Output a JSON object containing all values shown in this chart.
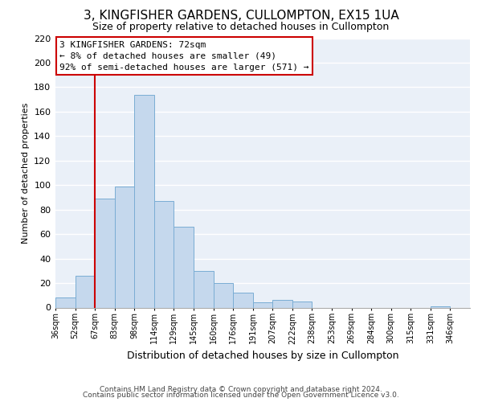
{
  "title": "3, KINGFISHER GARDENS, CULLOMPTON, EX15 1UA",
  "subtitle": "Size of property relative to detached houses in Cullompton",
  "xlabel": "Distribution of detached houses by size in Cullompton",
  "ylabel": "Number of detached properties",
  "bar_color": "#c5d8ed",
  "bar_edge_color": "#7aadd4",
  "background_color": "#eaf0f8",
  "grid_color": "white",
  "bin_labels": [
    "36sqm",
    "52sqm",
    "67sqm",
    "83sqm",
    "98sqm",
    "114sqm",
    "129sqm",
    "145sqm",
    "160sqm",
    "176sqm",
    "191sqm",
    "207sqm",
    "222sqm",
    "238sqm",
    "253sqm",
    "269sqm",
    "284sqm",
    "300sqm",
    "315sqm",
    "331sqm",
    "346sqm"
  ],
  "bar_heights": [
    8,
    26,
    89,
    99,
    174,
    87,
    66,
    30,
    20,
    12,
    4,
    6,
    5,
    0,
    0,
    0,
    0,
    0,
    0,
    1,
    0
  ],
  "ylim": [
    0,
    220
  ],
  "yticks": [
    0,
    20,
    40,
    60,
    80,
    100,
    120,
    140,
    160,
    180,
    200,
    220
  ],
  "property_line_x_label": "67sqm",
  "property_line_color": "#cc0000",
  "annotation_line1": "3 KINGFISHER GARDENS: 72sqm",
  "annotation_line2": "← 8% of detached houses are smaller (49)",
  "annotation_line3": "92% of semi-detached houses are larger (571) →",
  "annotation_box_edge": "#cc0000",
  "footnote1": "Contains HM Land Registry data © Crown copyright and database right 2024.",
  "footnote2": "Contains public sector information licensed under the Open Government Licence v3.0.",
  "title_fontsize": 11,
  "subtitle_fontsize": 9,
  "ylabel_fontsize": 8,
  "xlabel_fontsize": 9,
  "ytick_fontsize": 8,
  "xtick_fontsize": 7,
  "footnote_fontsize": 6.5
}
